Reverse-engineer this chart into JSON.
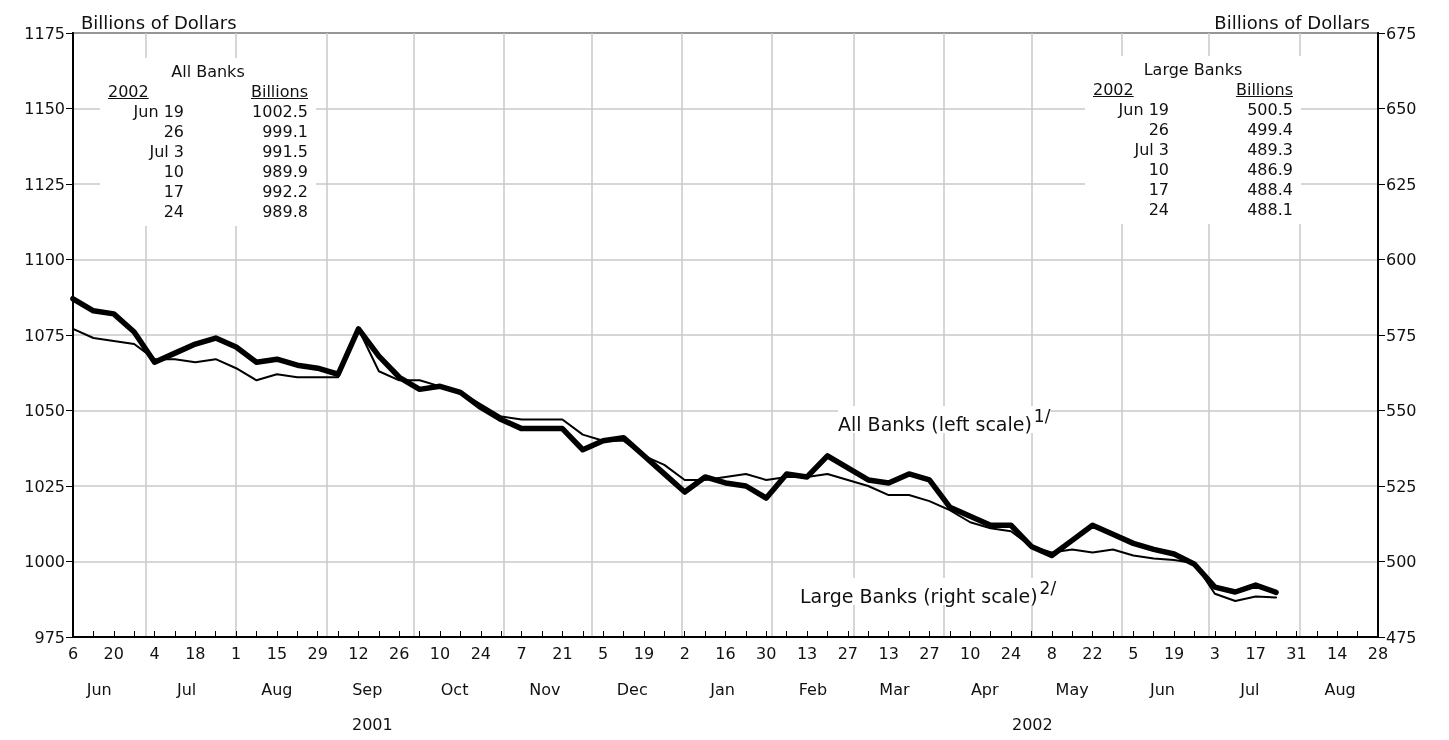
{
  "chart_data": {
    "type": "line",
    "ylabel": "Billions of Dollars",
    "y2label": "Billions of Dollars",
    "marker": "none",
    "line_style": "solid",
    "grid": true,
    "xlim": [
      "2001-06-06",
      "2002-08-28"
    ],
    "xticks": [
      {
        "value": "2001-06-06",
        "label": "6"
      },
      {
        "value": "2001-06-13",
        "label": null
      },
      {
        "value": "2001-06-20",
        "label": "20"
      },
      {
        "value": "2001-06-27",
        "label": null
      },
      {
        "value": "2001-07-04",
        "label": "4"
      },
      {
        "value": "2001-07-11",
        "label": null
      },
      {
        "value": "2001-07-18",
        "label": "18"
      },
      {
        "value": "2001-07-25",
        "label": null
      },
      {
        "value": "2001-08-01",
        "label": "1"
      },
      {
        "value": "2001-08-08",
        "label": null
      },
      {
        "value": "2001-08-15",
        "label": "15"
      },
      {
        "value": "2001-08-22",
        "label": null
      },
      {
        "value": "2001-08-29",
        "label": "29"
      },
      {
        "value": "2001-09-05",
        "label": null
      },
      {
        "value": "2001-09-12",
        "label": "12"
      },
      {
        "value": "2001-09-19",
        "label": null
      },
      {
        "value": "2001-09-26",
        "label": "26"
      },
      {
        "value": "2001-10-03",
        "label": null
      },
      {
        "value": "2001-10-10",
        "label": "10"
      },
      {
        "value": "2001-10-17",
        "label": null
      },
      {
        "value": "2001-10-24",
        "label": "24"
      },
      {
        "value": "2001-10-31",
        "label": null
      },
      {
        "value": "2001-11-07",
        "label": "7"
      },
      {
        "value": "2001-11-14",
        "label": null
      },
      {
        "value": "2001-11-21",
        "label": "21"
      },
      {
        "value": "2001-11-28",
        "label": null
      },
      {
        "value": "2001-12-05",
        "label": "5"
      },
      {
        "value": "2001-12-12",
        "label": null
      },
      {
        "value": "2001-12-19",
        "label": "19"
      },
      {
        "value": "2001-12-26",
        "label": null
      },
      {
        "value": "2002-01-02",
        "label": "2"
      },
      {
        "value": "2002-01-09",
        "label": null
      },
      {
        "value": "2002-01-16",
        "label": "16"
      },
      {
        "value": "2002-01-23",
        "label": null
      },
      {
        "value": "2002-01-30",
        "label": "30"
      },
      {
        "value": "2002-02-06",
        "label": null
      },
      {
        "value": "2002-02-13",
        "label": "13"
      },
      {
        "value": "2002-02-20",
        "label": null
      },
      {
        "value": "2002-02-27",
        "label": "27"
      },
      {
        "value": "2002-03-06",
        "label": null
      },
      {
        "value": "2002-03-13",
        "label": "13"
      },
      {
        "value": "2002-03-20",
        "label": null
      },
      {
        "value": "2002-03-27",
        "label": "27"
      },
      {
        "value": "2002-04-03",
        "label": null
      },
      {
        "value": "2002-04-10",
        "label": "10"
      },
      {
        "value": "2002-04-17",
        "label": null
      },
      {
        "value": "2002-04-24",
        "label": "24"
      },
      {
        "value": "2002-05-01",
        "label": null
      },
      {
        "value": "2002-05-08",
        "label": "8"
      },
      {
        "value": "2002-05-15",
        "label": null
      },
      {
        "value": "2002-05-22",
        "label": "22"
      },
      {
        "value": "2002-05-29",
        "label": null
      },
      {
        "value": "2002-06-05",
        "label": "5"
      },
      {
        "value": "2002-06-12",
        "label": null
      },
      {
        "value": "2002-06-19",
        "label": "19"
      },
      {
        "value": "2002-06-26",
        "label": null
      },
      {
        "value": "2002-07-03",
        "label": "3"
      },
      {
        "value": "2002-07-10",
        "label": null
      },
      {
        "value": "2002-07-17",
        "label": "17"
      },
      {
        "value": "2002-07-24",
        "label": null
      },
      {
        "value": "2002-07-31",
        "label": "31"
      },
      {
        "value": "2002-08-07",
        "label": null
      },
      {
        "value": "2002-08-14",
        "label": "14"
      },
      {
        "value": "2002-08-21",
        "label": null
      },
      {
        "value": "2002-08-28",
        "label": "28"
      }
    ],
    "x2lim": [
      "2001-06-06",
      "2002-08-28"
    ],
    "x2ticks": [
      {
        "value": "2001-07-01",
        "label": null
      },
      {
        "value": "2001-08-01",
        "label": null
      },
      {
        "value": "2001-09-01",
        "label": null
      },
      {
        "value": "2001-10-01",
        "label": null
      },
      {
        "value": "2001-11-01",
        "label": null
      },
      {
        "value": "2001-12-01",
        "label": null
      },
      {
        "value": "2002-01-01",
        "label": null
      },
      {
        "value": "2002-02-01",
        "label": null
      },
      {
        "value": "2002-03-01",
        "label": null
      },
      {
        "value": "2002-04-01",
        "label": null
      },
      {
        "value": "2002-05-01",
        "label": null
      },
      {
        "value": "2002-06-01",
        "label": null
      },
      {
        "value": "2002-07-01",
        "label": null
      },
      {
        "value": "2002-08-01",
        "label": null
      },
      {
        "value": "2001-06-15",
        "label": "Jun"
      },
      {
        "value": "2001-07-15",
        "label": "Jul"
      },
      {
        "value": "2001-08-15",
        "label": "Aug"
      },
      {
        "value": "2001-09-15",
        "label": "Sep"
      },
      {
        "value": "2001-10-15",
        "label": "Oct"
      },
      {
        "value": "2001-11-15",
        "label": "Nov"
      },
      {
        "value": "2001-12-15",
        "label": "Dec"
      },
      {
        "value": "2002-01-15",
        "label": "Jan"
      },
      {
        "value": "2002-02-15",
        "label": "Feb"
      },
      {
        "value": "2002-03-15",
        "label": "Mar"
      },
      {
        "value": "2002-04-15",
        "label": "Apr"
      },
      {
        "value": "2002-05-15",
        "label": "May"
      },
      {
        "value": "2002-06-15",
        "label": "Jun"
      },
      {
        "value": "2002-07-15",
        "label": "Jul"
      },
      {
        "value": "2002-08-15",
        "label": "Aug"
      }
    ],
    "ylim": [
      975,
      1175
    ],
    "yticks": [
      975,
      1000,
      1025,
      1050,
      1075,
      1100,
      1125,
      1150,
      1175
    ],
    "y2lim": [
      475,
      675
    ],
    "y2ticks": [
      475,
      500,
      525,
      550,
      575,
      600,
      625,
      650,
      675
    ],
    "x": [
      "2001-06-06",
      "2001-06-13",
      "2001-06-20",
      "2001-06-27",
      "2001-07-04",
      "2001-07-11",
      "2001-07-18",
      "2001-07-25",
      "2001-08-01",
      "2001-08-08",
      "2001-08-15",
      "2001-08-22",
      "2001-08-29",
      "2001-09-05",
      "2001-09-12",
      "2001-09-19",
      "2001-09-26",
      "2001-10-03",
      "2001-10-10",
      "2001-10-17",
      "2001-10-24",
      "2001-10-31",
      "2001-11-07",
      "2001-11-14",
      "2001-11-21",
      "2001-11-28",
      "2001-12-05",
      "2001-12-12",
      "2001-12-19",
      "2001-12-26",
      "2002-01-02",
      "2002-01-09",
      "2002-01-16",
      "2002-01-23",
      "2002-01-30",
      "2002-02-06",
      "2002-02-13",
      "2002-02-20",
      "2002-02-27",
      "2002-03-06",
      "2002-03-13",
      "2002-03-20",
      "2002-03-27",
      "2002-04-03",
      "2002-04-10",
      "2002-04-17",
      "2002-04-24",
      "2002-05-01",
      "2002-05-08",
      "2002-05-15",
      "2002-05-22",
      "2002-05-29",
      "2002-06-05",
      "2002-06-12",
      "2002-06-19",
      "2002-06-26",
      "2002-07-03",
      "2002-07-10",
      "2002-07-17",
      "2002-07-24"
    ],
    "series": [
      {
        "name": "All Banks (left scale)$^{1/}$",
        "color": "#000000",
        "axis": "y",
        "values": [
          1087,
          1083,
          1082,
          1076,
          1066,
          1069,
          1072,
          1074,
          1071,
          1066,
          1067,
          1065,
          1064,
          1062,
          1077,
          1068,
          1061,
          1057,
          1058,
          1056,
          1051,
          1047,
          1044,
          1044,
          1044,
          1037,
          1040,
          1041,
          1035,
          1029,
          1023,
          1028,
          1026,
          1025,
          1021,
          1029,
          1028,
          1035,
          1031,
          1027,
          1026,
          1029,
          1027,
          1018,
          1015,
          1012,
          1012,
          1005,
          1002,
          1007,
          1012,
          1009,
          1006,
          1004,
          1002.5,
          999.1,
          991.5,
          989.9,
          992.2,
          989.8
        ]
      },
      {
        "name": "Large Banks (right scale)$^{2/}$",
        "color": "#000000",
        "axis": "y2",
        "values": [
          577,
          574,
          573,
          572,
          567,
          567,
          566,
          567,
          564,
          560,
          562,
          561,
          561,
          561,
          577,
          563,
          560,
          560,
          558,
          556,
          552,
          548,
          547,
          547,
          547,
          542,
          540,
          540,
          535,
          532,
          527,
          527,
          528,
          529,
          527,
          528,
          528,
          529,
          527,
          525,
          522,
          522,
          520,
          517,
          513,
          511,
          510,
          505,
          503,
          504,
          503,
          504,
          502,
          501,
          500.5,
          499.4,
          489.3,
          486.9,
          488.4,
          488.1
        ]
      }
    ],
    "annotations": [
      "All Banks",
      "2002",
      "Billions",
      "Jun 19",
      "26",
      "Jul 3",
      "10",
      "17",
      "24",
      "1002.5",
      "999.1",
      "991.5",
      "989.9",
      "992.2",
      "989.8",
      "Large Banks",
      "2002",
      "Billions",
      "Jun 19",
      "26",
      "Jul 3",
      "10",
      "17",
      "24",
      "500.5",
      "499.4",
      "489.3",
      "486.9",
      "488.4",
      "488.1",
      "2001",
      "2002"
    ]
  }
}
